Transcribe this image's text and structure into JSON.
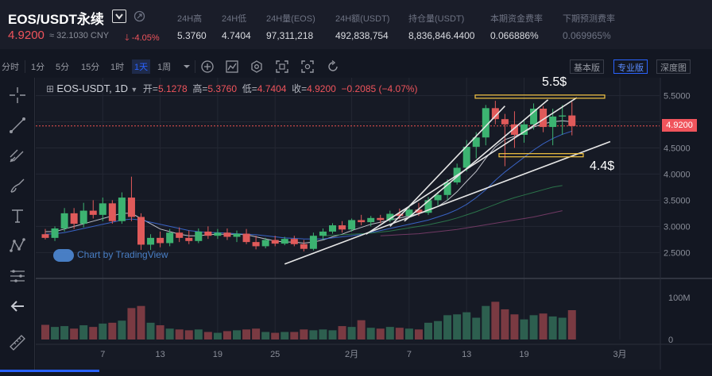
{
  "ticker": {
    "symbol": "EOS/USDT永续",
    "price": "4.9200",
    "cny": "≈ 32.1030 CNY",
    "change": "-4.05%",
    "stats": [
      {
        "label": "24H高",
        "value": "5.3760"
      },
      {
        "label": "24H低",
        "value": "4.7404"
      },
      {
        "label": "24H量(EOS)",
        "value": "97,311,218"
      },
      {
        "label": "24H额(USDT)",
        "value": "492,838,754"
      },
      {
        "label": "持仓量(USDT)",
        "value": "8,836,846.4400"
      },
      {
        "label": "本期资金费率",
        "value": "0.066886%"
      },
      {
        "label": "下期预测费率",
        "value": "0.069965%"
      }
    ]
  },
  "toolbar": {
    "intervals": [
      "分时",
      "1分",
      "5分",
      "15分",
      "1时",
      "1天",
      "1周"
    ],
    "active_interval": "1天",
    "modes": [
      "基本版",
      "专业版",
      "深度图"
    ],
    "active_mode": "专业版"
  },
  "legend": {
    "symbol": "EOS-USDT, 1D",
    "open_label": "开=",
    "open": "5.1278",
    "high_label": "高=",
    "high": "5.3760",
    "low_label": "低=",
    "low": "4.7404",
    "close_label": "收=",
    "close": "4.9200",
    "change": "−0.2085 (−4.07%)"
  },
  "annotations": {
    "upper": "5.5$",
    "lower": "4.4$"
  },
  "watermark": "Chart by TradingView",
  "current_price_tag": "4.9200",
  "colors": {
    "up": "#26a69a",
    "down": "#ef5350",
    "up_fill": "#3cb371",
    "down_fill": "#e05a5a",
    "accent": "#2962ff"
  },
  "chart_data": {
    "type": "candlestick",
    "price_axis": {
      "ticks": [
        "5.5000",
        "5.0000",
        "4.5000",
        "4.0000",
        "3.5000",
        "3.0000",
        "2.5000"
      ],
      "tick_values": [
        5.5,
        5.0,
        4.5,
        4.0,
        3.5,
        3.0,
        2.5
      ],
      "range": [
        2.05,
        5.72
      ]
    },
    "volume_axis": {
      "ticks": [
        "100M",
        "0"
      ],
      "tick_values": [
        100,
        0
      ],
      "range": [
        0,
        140
      ]
    },
    "time_axis": {
      "ticks": [
        "7",
        "13",
        "19",
        "25",
        "2月",
        "7",
        "13",
        "19",
        "3月"
      ],
      "tick_indices": [
        6,
        12,
        18,
        24,
        32,
        38,
        44,
        50,
        60
      ]
    },
    "candles": [
      {
        "o": 2.85,
        "h": 2.95,
        "l": 2.75,
        "c": 2.78,
        "v": 35
      },
      {
        "o": 2.78,
        "h": 3.0,
        "l": 2.72,
        "c": 2.96,
        "v": 30
      },
      {
        "o": 2.96,
        "h": 3.35,
        "l": 2.9,
        "c": 3.25,
        "v": 32
      },
      {
        "o": 3.25,
        "h": 3.35,
        "l": 2.95,
        "c": 3.05,
        "v": 26
      },
      {
        "o": 3.05,
        "h": 3.45,
        "l": 2.98,
        "c": 3.3,
        "v": 34
      },
      {
        "o": 3.3,
        "h": 3.5,
        "l": 3.15,
        "c": 3.22,
        "v": 30
      },
      {
        "o": 3.22,
        "h": 3.55,
        "l": 3.1,
        "c": 3.44,
        "v": 38
      },
      {
        "o": 3.44,
        "h": 3.5,
        "l": 3.05,
        "c": 3.1,
        "v": 40
      },
      {
        "o": 3.1,
        "h": 3.65,
        "l": 3.05,
        "c": 3.55,
        "v": 45
      },
      {
        "o": 3.55,
        "h": 3.95,
        "l": 3.1,
        "c": 3.18,
        "v": 75
      },
      {
        "o": 3.18,
        "h": 3.25,
        "l": 2.55,
        "c": 2.65,
        "v": 80
      },
      {
        "o": 2.65,
        "h": 2.85,
        "l": 2.55,
        "c": 2.78,
        "v": 40
      },
      {
        "o": 2.78,
        "h": 2.9,
        "l": 2.6,
        "c": 2.68,
        "v": 34
      },
      {
        "o": 2.68,
        "h": 2.95,
        "l": 2.62,
        "c": 2.88,
        "v": 26
      },
      {
        "o": 2.88,
        "h": 2.98,
        "l": 2.7,
        "c": 2.78,
        "v": 24
      },
      {
        "o": 2.78,
        "h": 2.92,
        "l": 2.66,
        "c": 2.72,
        "v": 22
      },
      {
        "o": 2.72,
        "h": 2.96,
        "l": 2.68,
        "c": 2.9,
        "v": 24
      },
      {
        "o": 2.9,
        "h": 3.0,
        "l": 2.76,
        "c": 2.82,
        "v": 18
      },
      {
        "o": 2.82,
        "h": 2.95,
        "l": 2.76,
        "c": 2.88,
        "v": 16
      },
      {
        "o": 2.88,
        "h": 2.96,
        "l": 2.74,
        "c": 2.8,
        "v": 20
      },
      {
        "o": 2.8,
        "h": 2.92,
        "l": 2.7,
        "c": 2.86,
        "v": 22
      },
      {
        "o": 2.86,
        "h": 2.95,
        "l": 2.66,
        "c": 2.7,
        "v": 24
      },
      {
        "o": 2.7,
        "h": 2.82,
        "l": 2.56,
        "c": 2.62,
        "v": 26
      },
      {
        "o": 2.62,
        "h": 2.78,
        "l": 2.58,
        "c": 2.74,
        "v": 18
      },
      {
        "o": 2.74,
        "h": 2.82,
        "l": 2.62,
        "c": 2.67,
        "v": 16
      },
      {
        "o": 2.67,
        "h": 2.8,
        "l": 2.64,
        "c": 2.76,
        "v": 18
      },
      {
        "o": 2.76,
        "h": 2.82,
        "l": 2.62,
        "c": 2.66,
        "v": 18
      },
      {
        "o": 2.66,
        "h": 2.74,
        "l": 2.52,
        "c": 2.57,
        "v": 24
      },
      {
        "o": 2.57,
        "h": 2.88,
        "l": 2.54,
        "c": 2.82,
        "v": 22
      },
      {
        "o": 2.82,
        "h": 2.96,
        "l": 2.74,
        "c": 2.9,
        "v": 24
      },
      {
        "o": 2.9,
        "h": 3.06,
        "l": 2.86,
        "c": 3.02,
        "v": 22
      },
      {
        "o": 3.02,
        "h": 3.1,
        "l": 2.88,
        "c": 2.94,
        "v": 32
      },
      {
        "o": 2.94,
        "h": 3.15,
        "l": 2.9,
        "c": 3.12,
        "v": 30
      },
      {
        "o": 3.12,
        "h": 3.22,
        "l": 3.02,
        "c": 3.08,
        "v": 46
      },
      {
        "o": 3.08,
        "h": 3.2,
        "l": 3.0,
        "c": 3.16,
        "v": 28
      },
      {
        "o": 3.16,
        "h": 3.22,
        "l": 3.06,
        "c": 3.12,
        "v": 26
      },
      {
        "o": 3.12,
        "h": 3.3,
        "l": 3.08,
        "c": 3.24,
        "v": 30
      },
      {
        "o": 3.24,
        "h": 3.34,
        "l": 3.14,
        "c": 3.2,
        "v": 28
      },
      {
        "o": 3.2,
        "h": 3.38,
        "l": 3.16,
        "c": 3.32,
        "v": 26
      },
      {
        "o": 3.32,
        "h": 3.45,
        "l": 3.2,
        "c": 3.26,
        "v": 24
      },
      {
        "o": 3.26,
        "h": 3.56,
        "l": 3.22,
        "c": 3.5,
        "v": 40
      },
      {
        "o": 3.5,
        "h": 3.66,
        "l": 3.4,
        "c": 3.6,
        "v": 44
      },
      {
        "o": 3.6,
        "h": 3.9,
        "l": 3.5,
        "c": 3.84,
        "v": 58
      },
      {
        "o": 3.84,
        "h": 4.2,
        "l": 3.8,
        "c": 4.12,
        "v": 60
      },
      {
        "o": 4.12,
        "h": 4.65,
        "l": 4.05,
        "c": 4.52,
        "v": 65
      },
      {
        "o": 4.52,
        "h": 4.8,
        "l": 4.3,
        "c": 4.7,
        "v": 52
      },
      {
        "o": 4.7,
        "h": 5.32,
        "l": 4.55,
        "c": 5.26,
        "v": 80
      },
      {
        "o": 5.26,
        "h": 5.4,
        "l": 4.95,
        "c": 5.05,
        "v": 90
      },
      {
        "o": 5.05,
        "h": 5.15,
        "l": 4.15,
        "c": 4.95,
        "v": 72
      },
      {
        "o": 4.95,
        "h": 5.2,
        "l": 4.5,
        "c": 4.75,
        "v": 60
      },
      {
        "o": 4.75,
        "h": 5.05,
        "l": 4.6,
        "c": 4.95,
        "v": 48
      },
      {
        "o": 4.95,
        "h": 5.35,
        "l": 4.85,
        "c": 5.25,
        "v": 58
      },
      {
        "o": 5.25,
        "h": 5.3,
        "l": 4.8,
        "c": 4.9,
        "v": 62
      },
      {
        "o": 4.9,
        "h": 5.25,
        "l": 4.55,
        "c": 5.1,
        "v": 55
      },
      {
        "o": 5.1,
        "h": 5.32,
        "l": 4.75,
        "c": 5.12,
        "v": 52
      },
      {
        "o": 5.12,
        "h": 5.38,
        "l": 4.74,
        "c": 4.92,
        "v": 70
      }
    ],
    "volume_color_override": [
      null,
      null,
      null,
      null,
      null,
      null,
      null,
      null,
      null,
      null,
      null,
      null,
      null,
      null,
      null,
      null,
      null,
      null,
      null,
      null,
      null,
      null,
      null,
      null,
      null,
      null,
      null,
      null,
      null,
      null,
      null,
      null,
      null,
      null,
      null,
      null,
      null,
      null,
      null,
      null,
      null,
      null,
      null,
      null,
      1,
      null,
      null,
      null,
      null,
      null,
      null,
      null,
      null,
      null,
      null,
      null
    ],
    "moving_averages": [
      {
        "color": "#d1d4dc",
        "values": [
          2.9,
          2.9,
          2.95,
          3.0,
          3.05,
          3.1,
          3.15,
          3.2,
          3.25,
          3.25,
          3.15,
          3.05,
          2.95,
          2.9,
          2.85,
          2.82,
          2.82,
          2.84,
          2.85,
          2.85,
          2.85,
          2.84,
          2.8,
          2.76,
          2.72,
          2.7,
          2.7,
          2.68,
          2.7,
          2.74,
          2.8,
          2.85,
          2.92,
          2.98,
          3.04,
          3.08,
          3.12,
          3.16,
          3.2,
          3.24,
          3.3,
          3.38,
          3.5,
          3.66,
          3.86,
          4.05,
          4.3,
          4.52,
          4.66,
          4.72,
          4.8,
          4.9,
          4.96,
          5.0,
          5.02,
          5.0
        ]
      },
      {
        "color": "#3d6bd6",
        "values": [
          2.85,
          2.86,
          2.88,
          2.92,
          2.96,
          3.0,
          3.04,
          3.08,
          3.12,
          3.14,
          3.12,
          3.08,
          3.04,
          3.0,
          2.96,
          2.92,
          2.9,
          2.88,
          2.88,
          2.87,
          2.86,
          2.85,
          2.84,
          2.82,
          2.8,
          2.78,
          2.77,
          2.76,
          2.76,
          2.76,
          2.78,
          2.8,
          2.82,
          2.85,
          2.88,
          2.92,
          2.96,
          3.0,
          3.04,
          3.08,
          3.12,
          3.18,
          3.24,
          3.32,
          3.42,
          3.55,
          3.7,
          3.88,
          4.04,
          4.18,
          4.32,
          4.46,
          4.58,
          4.68,
          4.76,
          4.82
        ]
      },
      {
        "color": "#2e7d4f",
        "values": [
          null,
          null,
          null,
          null,
          null,
          null,
          null,
          null,
          null,
          null,
          null,
          null,
          null,
          null,
          null,
          null,
          null,
          null,
          null,
          null,
          null,
          null,
          null,
          null,
          null,
          null,
          null,
          null,
          null,
          2.82,
          2.83,
          2.84,
          2.85,
          2.86,
          2.87,
          2.89,
          2.91,
          2.94,
          2.97,
          3.0,
          3.03,
          3.07,
          3.11,
          3.16,
          3.22,
          3.28,
          3.35,
          3.42,
          3.49,
          3.55,
          3.6,
          3.65,
          3.7,
          3.75,
          3.78,
          null
        ]
      },
      {
        "color": "#7a3d6a",
        "values": [
          null,
          null,
          null,
          null,
          null,
          null,
          null,
          null,
          null,
          null,
          null,
          null,
          null,
          null,
          null,
          null,
          null,
          null,
          null,
          null,
          null,
          null,
          null,
          null,
          null,
          null,
          null,
          null,
          null,
          null,
          null,
          null,
          null,
          null,
          null,
          2.82,
          2.83,
          2.84,
          2.85,
          2.86,
          2.88,
          2.9,
          2.92,
          2.94,
          2.97,
          3.0,
          3.03,
          3.06,
          3.09,
          3.12,
          3.15,
          3.18,
          3.22,
          3.26,
          3.3,
          null
        ]
      }
    ]
  }
}
